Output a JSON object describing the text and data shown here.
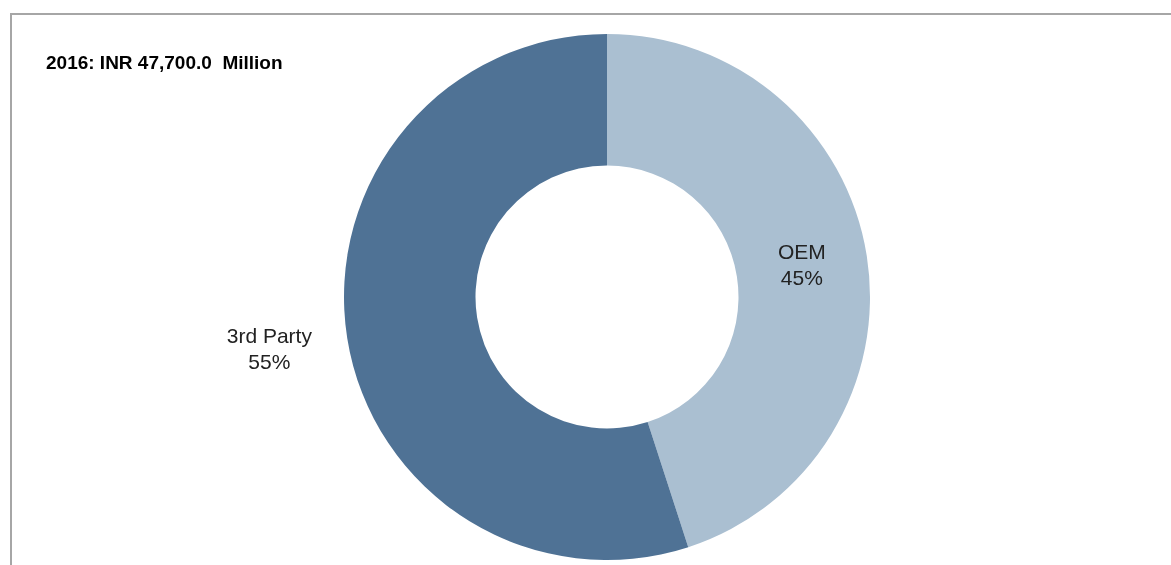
{
  "chart_data": {
    "type": "donut",
    "title": "2016: INR 47,700.0  Million",
    "categories": [
      "OEM",
      "3rd Party"
    ],
    "values": [
      45,
      55
    ],
    "value_labels": [
      "45%",
      "55%"
    ],
    "colors": [
      "#aabfd1",
      "#4f7295"
    ],
    "legend": false
  }
}
